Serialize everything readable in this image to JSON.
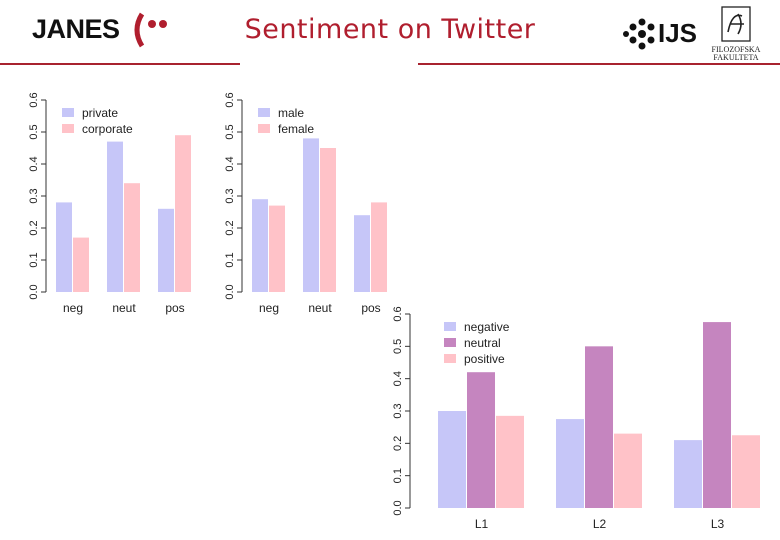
{
  "header": {
    "title": "Sentiment on Twitter",
    "janes_logo": "JANES",
    "ijs_logo": "IJS",
    "ff_logo": "FILOZOFSKA FAKULTETA",
    "accent_color": "#b01e2e"
  },
  "chart_data": [
    {
      "type": "bar",
      "title": "",
      "categories": [
        "neg",
        "neut",
        "pos"
      ],
      "series": [
        {
          "name": "private",
          "color": "#c6c6f8",
          "values": [
            0.28,
            0.47,
            0.26
          ]
        },
        {
          "name": "corporate",
          "color": "#ffc2c8",
          "values": [
            0.17,
            0.34,
            0.49
          ]
        }
      ],
      "ylim": [
        0,
        0.6
      ],
      "yticks": [
        "0.0",
        "0.1",
        "0.2",
        "0.3",
        "0.4",
        "0.5",
        "0.6"
      ],
      "legend": "top-left"
    },
    {
      "type": "bar",
      "title": "",
      "categories": [
        "neg",
        "neut",
        "pos"
      ],
      "series": [
        {
          "name": "male",
          "color": "#c6c6f8",
          "values": [
            0.29,
            0.48,
            0.24
          ]
        },
        {
          "name": "female",
          "color": "#ffc2c8",
          "values": [
            0.27,
            0.45,
            0.28
          ]
        }
      ],
      "ylim": [
        0,
        0.6
      ],
      "yticks": [
        "0.0",
        "0.1",
        "0.2",
        "0.3",
        "0.4",
        "0.5",
        "0.6"
      ],
      "legend": "top-left"
    },
    {
      "type": "bar",
      "title": "",
      "categories": [
        "L1",
        "L2",
        "L3"
      ],
      "series": [
        {
          "name": "negative",
          "color": "#c6c6f8",
          "values": [
            0.3,
            0.275,
            0.21
          ]
        },
        {
          "name": "neutral",
          "color": "#c585bf",
          "values": [
            0.42,
            0.5,
            0.575
          ]
        },
        {
          "name": "positive",
          "color": "#ffc2c8",
          "values": [
            0.285,
            0.23,
            0.225
          ]
        }
      ],
      "ylim": [
        0,
        0.6
      ],
      "yticks": [
        "0.0",
        "0.1",
        "0.2",
        "0.3",
        "0.4",
        "0.5",
        "0.6"
      ],
      "legend": "top-left"
    }
  ]
}
